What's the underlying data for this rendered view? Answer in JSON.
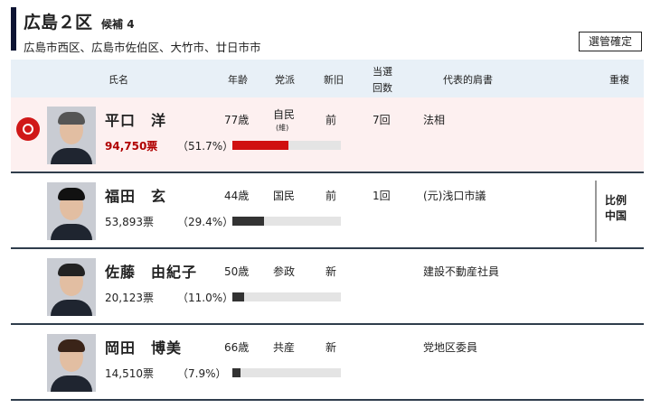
{
  "header": {
    "title": "広島２区",
    "candidates": "候補 4",
    "area": "広島市西区、広島市佐伯区、大竹市、廿日市市",
    "status_button": "選管確定"
  },
  "columns": [
    "氏名",
    "年齢",
    "党派",
    "新旧",
    "当選",
    "回数",
    "代表的肩書",
    "重複"
  ],
  "colors": {
    "winner_bar": "#d01010",
    "bar": "#333333",
    "winner_bg": "#fdf0f0",
    "winner_votes": "#b00000"
  },
  "rows": [
    {
      "name": "平口　洋",
      "age": "77歳",
      "party": "自民",
      "party_sub": "(維)",
      "status": "前",
      "wins": "7回",
      "title": "法相",
      "votes": "94,750票",
      "pct": "（51.7%）",
      "share": 51.7,
      "winner": true,
      "dup": ""
    },
    {
      "name": "福田　玄",
      "age": "44歳",
      "party": "国民",
      "status": "前",
      "wins": "1回",
      "title": "(元)浅口市議",
      "votes": "53,893票",
      "pct": "（29.4%）",
      "share": 29.4,
      "dup1": "比例",
      "dup2": "中国"
    },
    {
      "name": "佐藤　由紀子",
      "age": "50歳",
      "party": "参政",
      "status": "新",
      "wins": "",
      "title": "建設不動産社員",
      "votes": "20,123票",
      "pct": "（11.0%）",
      "share": 11.0
    },
    {
      "name": "岡田　博美",
      "age": "66歳",
      "party": "共産",
      "status": "新",
      "wins": "",
      "title": "党地区委員",
      "votes": "14,510票",
      "pct": "（7.9%）",
      "share": 7.9
    }
  ]
}
